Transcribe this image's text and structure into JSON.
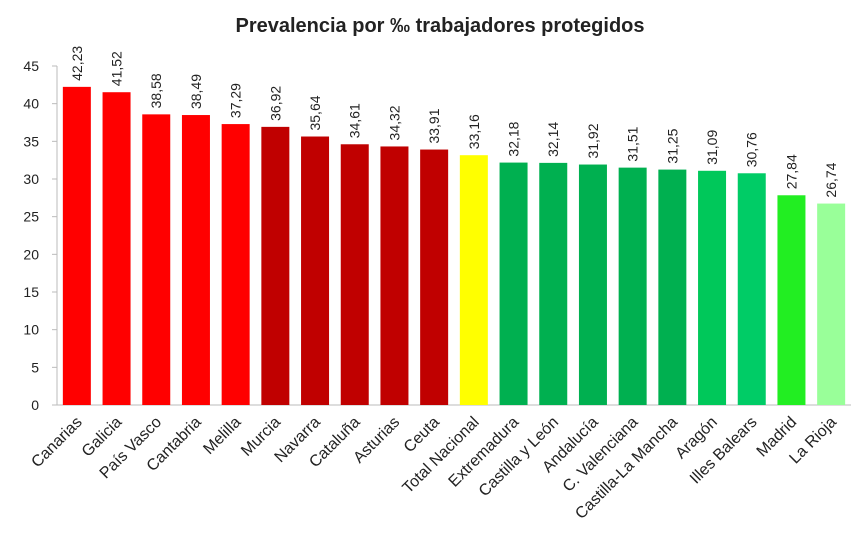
{
  "chart_data": {
    "type": "bar",
    "title": "Prevalencia por ‰ trabajadores protegidos",
    "categories": [
      "Canarias",
      "Galicia",
      "País Vasco",
      "Cantabria",
      "Melilla",
      "Murcia",
      "Navarra",
      "Cataluña",
      "Asturias",
      "Ceuta",
      "Total Nacional",
      "Extremadura",
      "Castilla y León",
      "Andalucía",
      "C. Valenciana",
      "Castilla-La Mancha",
      "Aragón",
      "Illes Balears",
      "Madrid",
      "La Rioja"
    ],
    "values": [
      42.23,
      41.52,
      38.58,
      38.49,
      37.29,
      36.92,
      35.64,
      34.61,
      34.32,
      33.91,
      33.16,
      32.18,
      32.14,
      31.92,
      31.51,
      31.25,
      31.09,
      30.76,
      27.84,
      26.74
    ],
    "value_labels": [
      "42,23",
      "41,52",
      "38,58",
      "38,49",
      "37,29",
      "36,92",
      "35,64",
      "34,61",
      "34,32",
      "33,91",
      "33,16",
      "32,18",
      "32,14",
      "31,92",
      "31,51",
      "31,25",
      "31,09",
      "30,76",
      "27,84",
      "26,74"
    ],
    "colors": [
      "#ff0000",
      "#ff0000",
      "#ff0000",
      "#ff0000",
      "#ff0000",
      "#c00000",
      "#c00000",
      "#c00000",
      "#c00000",
      "#c00000",
      "#ffff00",
      "#00b050",
      "#00b050",
      "#00b050",
      "#00b050",
      "#00b050",
      "#00c85a",
      "#00cc66",
      "#22ee22",
      "#99ff99"
    ],
    "ylim": [
      0,
      45
    ],
    "yticks": [
      0,
      5,
      10,
      15,
      20,
      25,
      30,
      35,
      40,
      45
    ],
    "grid": false
  }
}
